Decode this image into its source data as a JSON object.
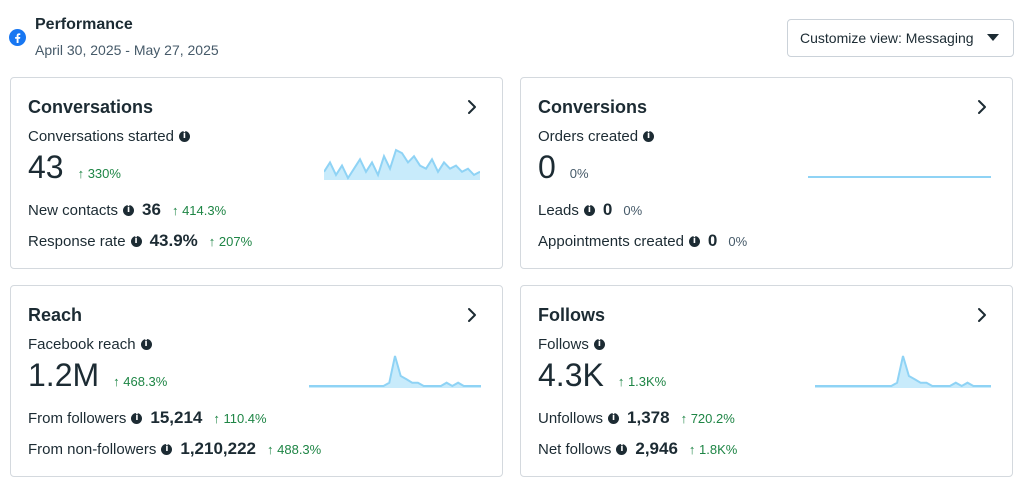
{
  "header": {
    "title": "Performance",
    "date_range": "April 30, 2025 - May 27, 2025",
    "customize_label": "Customize view: Messaging",
    "facebook_icon": "facebook-logo-icon",
    "brand_color": "#1877f2"
  },
  "cards": {
    "conversations": {
      "title": "Conversations",
      "main_label": "Conversations started",
      "main_value": "43",
      "main_change": "↑ 330%",
      "sub1_label": "New contacts",
      "sub1_value": "36",
      "sub1_change": "↑ 414.3%",
      "sub2_label": "Response rate",
      "sub2_value": "43.9%",
      "sub2_change": "↑ 207%",
      "trend": [
        2,
        5,
        1,
        4,
        0,
        3,
        6,
        2,
        5,
        1,
        7,
        3,
        9,
        8,
        5,
        7,
        4,
        3,
        6,
        2,
        5,
        3,
        4,
        2,
        3,
        1,
        2
      ]
    },
    "conversions": {
      "title": "Conversions",
      "main_label": "Orders created",
      "main_value": "0",
      "main_change": "0%",
      "sub1_label": "Leads",
      "sub1_value": "0",
      "sub1_change": "0%",
      "sub2_label": "Appointments created",
      "sub2_value": "0",
      "sub2_change": "0%"
    },
    "reach": {
      "title": "Reach",
      "main_label": "Facebook reach",
      "main_value": "1.2M",
      "main_change": "↑ 468.3%",
      "sub1_label": "From followers",
      "sub1_value": "15,214",
      "sub1_change": "↑ 110.4%",
      "sub2_label": "From non-followers",
      "sub2_value": "1,210,222",
      "sub2_change": "↑ 488.3%",
      "trend": [
        1,
        1,
        1,
        1,
        1,
        1,
        1,
        1,
        1,
        1,
        1,
        1,
        1,
        1,
        2,
        10,
        4,
        3,
        2,
        2,
        1,
        1,
        1,
        1,
        2,
        1,
        2,
        1,
        1,
        1,
        1
      ]
    },
    "follows": {
      "title": "Follows",
      "main_label": "Follows",
      "main_value": "4.3K",
      "main_change": "↑ 1.3K%",
      "sub1_label": "Unfollows",
      "sub1_value": "1,378",
      "sub1_change": "↑ 720.2%",
      "sub2_label": "Net follows",
      "sub2_value": "2,946",
      "sub2_change": "↑ 1.8K%",
      "trend": [
        1,
        1,
        1,
        1,
        1,
        1,
        1,
        1,
        1,
        1,
        1,
        1,
        1,
        1,
        2,
        10,
        4,
        3,
        2,
        2,
        1,
        1,
        1,
        1,
        2,
        1,
        2,
        1,
        1,
        1,
        1
      ]
    }
  },
  "colors": {
    "positive": "#1e8545",
    "neutral": "#465a69",
    "spark_line": "#8fd3f5",
    "spark_fill": "#c8ebfb",
    "text_primary": "#1c2b33"
  }
}
